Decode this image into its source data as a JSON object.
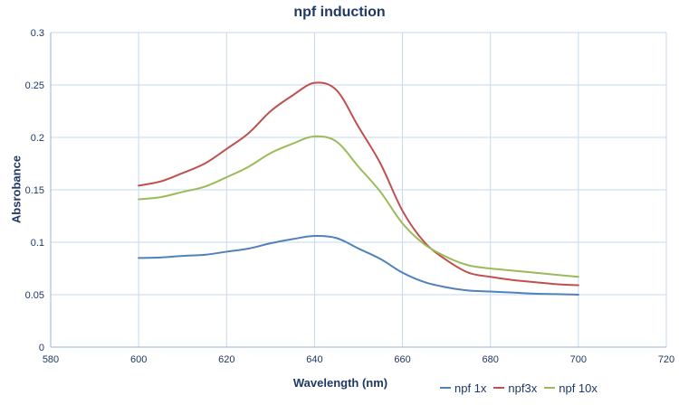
{
  "chart_data": {
    "type": "line",
    "title": "npf induction",
    "xlabel": "Wavelength (nm)",
    "ylabel": "Absrobance",
    "xlim": [
      580,
      720
    ],
    "ylim": [
      0,
      0.3
    ],
    "x_ticks": [
      "580",
      "600",
      "620",
      "640",
      "660",
      "680",
      "700",
      "720"
    ],
    "y_ticks": [
      "0",
      "0.05",
      "0.1",
      "0.15",
      "0.2",
      "0.25",
      "0.3"
    ],
    "grid": true,
    "legend_position": "bottom-right",
    "series": [
      {
        "name": "npf 1x",
        "color": "#4f81bd",
        "x": [
          600,
          605,
          610,
          615,
          620,
          625,
          630,
          635,
          640,
          645,
          650,
          655,
          660,
          665,
          670,
          675,
          680,
          685,
          690,
          695,
          700
        ],
        "y": [
          0.085,
          0.0855,
          0.087,
          0.088,
          0.091,
          0.094,
          0.099,
          0.103,
          0.106,
          0.104,
          0.094,
          0.084,
          0.071,
          0.062,
          0.057,
          0.054,
          0.053,
          0.052,
          0.051,
          0.0505,
          0.05
        ]
      },
      {
        "name": "npf3x",
        "color": "#c0504d",
        "x": [
          600,
          605,
          610,
          615,
          620,
          625,
          630,
          635,
          640,
          645,
          650,
          655,
          660,
          665,
          670,
          675,
          680,
          685,
          690,
          695,
          700
        ],
        "y": [
          0.154,
          0.158,
          0.166,
          0.175,
          0.189,
          0.204,
          0.225,
          0.24,
          0.252,
          0.245,
          0.21,
          0.175,
          0.13,
          0.1,
          0.083,
          0.071,
          0.067,
          0.064,
          0.062,
          0.06,
          0.059
        ]
      },
      {
        "name": "npf 10x",
        "color": "#9bbb59",
        "x": [
          600,
          605,
          610,
          615,
          620,
          625,
          630,
          635,
          640,
          645,
          650,
          655,
          660,
          665,
          670,
          675,
          680,
          685,
          690,
          695,
          700
        ],
        "y": [
          0.141,
          0.143,
          0.148,
          0.153,
          0.162,
          0.172,
          0.185,
          0.194,
          0.201,
          0.196,
          0.172,
          0.148,
          0.118,
          0.098,
          0.086,
          0.078,
          0.075,
          0.073,
          0.071,
          0.069,
          0.067
        ]
      }
    ]
  }
}
